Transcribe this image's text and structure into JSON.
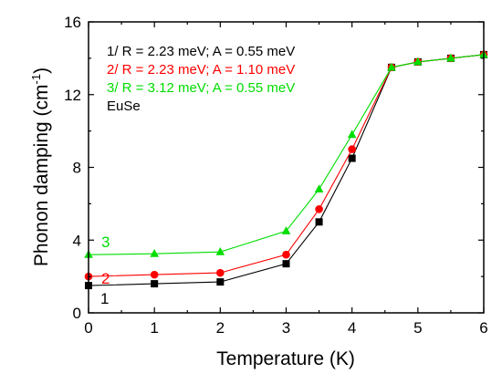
{
  "chart_data": {
    "type": "line",
    "xlabel": "Temperature (K)",
    "ylabel_main": "Phonon damping (cm",
    "ylabel_sup": "-1",
    "ylabel_close": ")",
    "xlim": [
      0,
      6
    ],
    "ylim": [
      0,
      16
    ],
    "xticks": [
      0,
      1,
      2,
      3,
      4,
      5,
      6
    ],
    "yticks": [
      0,
      4,
      8,
      12,
      16
    ],
    "xtick_labels": [
      "0",
      "1",
      "2",
      "3",
      "4",
      "5",
      "6"
    ],
    "ytick_labels": [
      "0",
      "4",
      "8",
      "12",
      "16"
    ],
    "grid": false,
    "legend_position": "top-left",
    "legend_extra": "EuSe",
    "series": [
      {
        "name": "1/ R = 2.23 meV; A = 0.55 meV",
        "curve_label": "1",
        "color": "#000000",
        "marker": "square",
        "x": [
          0,
          1,
          2,
          3,
          3.5,
          4,
          4.6,
          5,
          5.5,
          6
        ],
        "y": [
          1.5,
          1.6,
          1.7,
          2.7,
          5.0,
          8.5,
          13.5,
          13.8,
          14.0,
          14.2
        ]
      },
      {
        "name": "2/ R = 2.23 meV; A = 1.10 meV",
        "curve_label": "2",
        "color": "#ff0000",
        "marker": "circle",
        "x": [
          0,
          1,
          2,
          3,
          3.5,
          4,
          4.6,
          5,
          5.5,
          6
        ],
        "y": [
          2.0,
          2.1,
          2.2,
          3.2,
          5.7,
          9.0,
          13.5,
          13.8,
          14.0,
          14.2
        ]
      },
      {
        "name": "3/ R = 3.12 meV; A = 0.55 meV",
        "curve_label": "3",
        "color": "#00dd00",
        "marker": "triangle",
        "x": [
          0,
          1,
          2,
          3,
          3.5,
          4,
          4.6,
          5,
          5.5,
          6
        ],
        "y": [
          3.2,
          3.25,
          3.35,
          4.5,
          6.8,
          9.8,
          13.5,
          13.8,
          14.0,
          14.2
        ]
      }
    ]
  }
}
